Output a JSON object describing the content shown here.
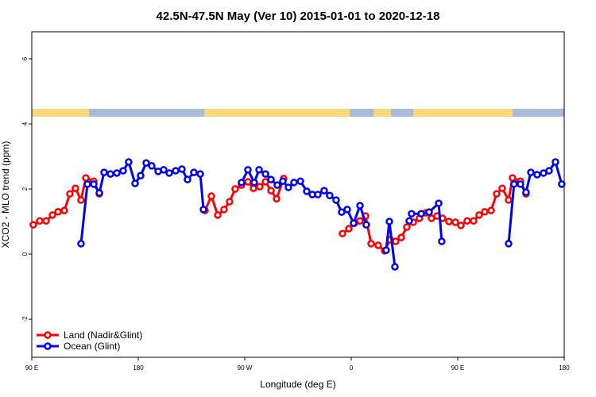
{
  "chart_data": {
    "type": "line",
    "title": "42.5N-47.5N May (Ver 10)   2015-01-01 to 2020-12-18",
    "xlabel": "Longitude (deg E)",
    "ylabel": "XCO2 - MLO trend (ppm)",
    "xlim": [
      90,
      540
    ],
    "xticks": [
      {
        "value": 90,
        "label": "90 E"
      },
      {
        "value": 180,
        "label": "180"
      },
      {
        "value": 270,
        "label": "90 W"
      },
      {
        "value": 360,
        "label": "0"
      },
      {
        "value": 450,
        "label": "90 E"
      },
      {
        "value": 540,
        "label": "180"
      }
    ],
    "ylim": [
      -3.17,
      6.83
    ],
    "yticks": [
      -2,
      0,
      2,
      4,
      6
    ],
    "legend": "bottom-left",
    "series": [
      {
        "name": "Land (Nadir&Glint)",
        "color": "#ff0000",
        "x": [
          91.3,
          96.7,
          102.1,
          107.5,
          112.2,
          117.5,
          122.2,
          126.9,
          131.6,
          135.7,
          142.4,
          147.1,
          null,
          236.4,
          241.8,
          247.2,
          252.5,
          257.2,
          261.9,
          267.3,
          272.7,
          277.4,
          282.7,
          287.5,
          292.2,
          296.9,
          302.9,
          null,
          352.6,
          358.0,
          362.7,
          367.4,
          372.1,
          376.8,
          382.8,
          388.2,
          392.9,
          397.6,
          402.3,
          407.0,
          412.4,
          417.7,
          423.1,
          427.8,
          432.5,
          437.2,
          442.6,
          448.0,
          452.7,
          458.0,
          463.4,
          468.1,
          472.8,
          478.2,
          482.9,
          487.6,
          493.0,
          496.3,
          503.0,
          507.7
        ],
        "values": [
          0.9,
          1.02,
          1.02,
          1.2,
          1.3,
          1.34,
          1.85,
          2.02,
          1.66,
          2.34,
          2.24,
          1.85,
          null,
          1.34,
          1.78,
          1.2,
          1.37,
          1.61,
          2.0,
          2.12,
          2.22,
          2.02,
          2.07,
          2.22,
          1.95,
          1.7,
          2.32,
          null,
          0.63,
          0.78,
          0.95,
          1.02,
          1.17,
          0.32,
          0.27,
          0.1,
          0.44,
          0.39,
          0.51,
          0.83,
          0.98,
          1.1,
          1.27,
          1.1,
          1.17,
          1.1,
          1.0,
          0.98,
          0.88,
          1.02,
          1.02,
          1.2,
          1.3,
          1.34,
          1.85,
          2.02,
          1.66,
          2.34,
          2.24,
          1.85
        ]
      },
      {
        "name": "Ocean (Glint)",
        "color": "#0000ee",
        "x": [
          131.6,
          137.0,
          142.4,
          147.1,
          151.1,
          156.5,
          161.9,
          167.2,
          171.9,
          177.3,
          182.0,
          186.7,
          191.4,
          196.8,
          201.5,
          206.2,
          211.6,
          216.9,
          221.6,
          227.0,
          232.4,
          235.1,
          null,
          267.3,
          272.7,
          278.0,
          282.1,
          287.5,
          292.2,
          297.5,
          302.2,
          306.9,
          311.6,
          317.0,
          322.4,
          327.1,
          331.8,
          337.1,
          341.8,
          347.2,
          351.9,
          356.6,
          362.0,
          367.4,
          372.7,
          null,
          389.5,
          392.2,
          396.9,
          null,
          409.0,
          411.0,
          419.1,
          425.8,
          433.9,
          436.5,
          null,
          493.0,
          497.6,
          503.0,
          507.7,
          511.8,
          517.1,
          522.5,
          527.2,
          532.6,
          537.9
        ],
        "values": [
          0.32,
          2.15,
          2.15,
          1.88,
          2.51,
          2.46,
          2.49,
          2.56,
          2.83,
          2.17,
          2.41,
          2.8,
          2.71,
          2.54,
          2.59,
          2.49,
          2.56,
          2.61,
          2.29,
          2.51,
          2.46,
          1.37,
          null,
          2.2,
          2.59,
          2.2,
          2.59,
          2.46,
          2.29,
          2.12,
          2.24,
          2.05,
          2.2,
          2.24,
          1.93,
          1.83,
          1.83,
          1.95,
          1.8,
          1.66,
          1.29,
          1.37,
          0.95,
          1.49,
          0.9,
          null,
          0.12,
          1.0,
          -0.39,
          null,
          1.02,
          1.24,
          1.24,
          1.29,
          1.56,
          0.39,
          null,
          0.32,
          2.15,
          2.15,
          1.9,
          2.51,
          2.44,
          2.49,
          2.56,
          2.83,
          2.15
        ]
      }
    ]
  }
}
